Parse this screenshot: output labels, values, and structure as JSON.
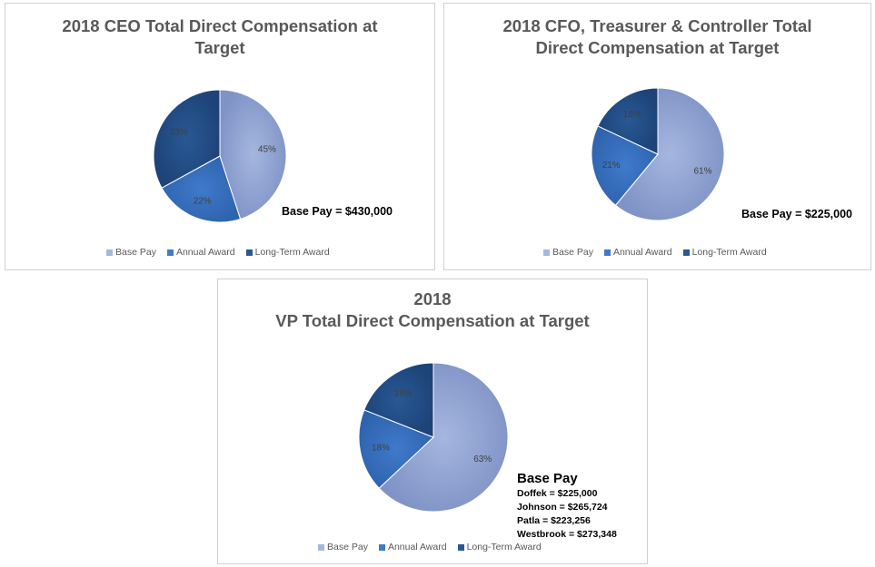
{
  "colors": {
    "base_pay": "#a5b6df",
    "annual_award": "#3f7acb",
    "long_term_award": "#295894"
  },
  "chart_data": [
    {
      "id": "ceo",
      "type": "pie",
      "title_lines": [
        "2018 CEO Total Direct Compensation at",
        "Target"
      ],
      "categories": [
        "Base Pay",
        "Annual Award",
        "Long-Term Award"
      ],
      "values": [
        45,
        22,
        33
      ],
      "labels": [
        "45%",
        "22%",
        "33%"
      ],
      "annotation": "Base Pay = $430,000",
      "legend": [
        "Base Pay",
        "Annual Award",
        "Long-Term Award"
      ]
    },
    {
      "id": "cfo",
      "type": "pie",
      "title_lines": [
        "2018 CFO, Treasurer & Controller Total",
        "Direct Compensation at Target"
      ],
      "categories": [
        "Base Pay",
        "Annual Award",
        "Long-Term Award"
      ],
      "values": [
        61,
        21,
        18
      ],
      "labels": [
        "61%",
        "21%",
        "18%"
      ],
      "annotation": "Base Pay = $225,000",
      "legend": [
        "Base Pay",
        "Annual Award",
        "Long-Term Award"
      ]
    },
    {
      "id": "vp",
      "type": "pie",
      "title_lines": [
        "2018",
        "VP Total Direct Compensation at Target"
      ],
      "categories": [
        "Base Pay",
        "Annual Award",
        "Long-Term Award"
      ],
      "values": [
        63,
        18,
        19
      ],
      "labels": [
        "63%",
        "18%",
        "19%"
      ],
      "annotation_head": "Base Pay",
      "annotation_lines": [
        "Doffek = $225,000",
        "Johnson = $265,724",
        "Patla = $223,256",
        "Westbrook = $273,348"
      ],
      "legend": [
        "Base Pay",
        "Annual Award",
        "Long-Term Award"
      ]
    }
  ]
}
